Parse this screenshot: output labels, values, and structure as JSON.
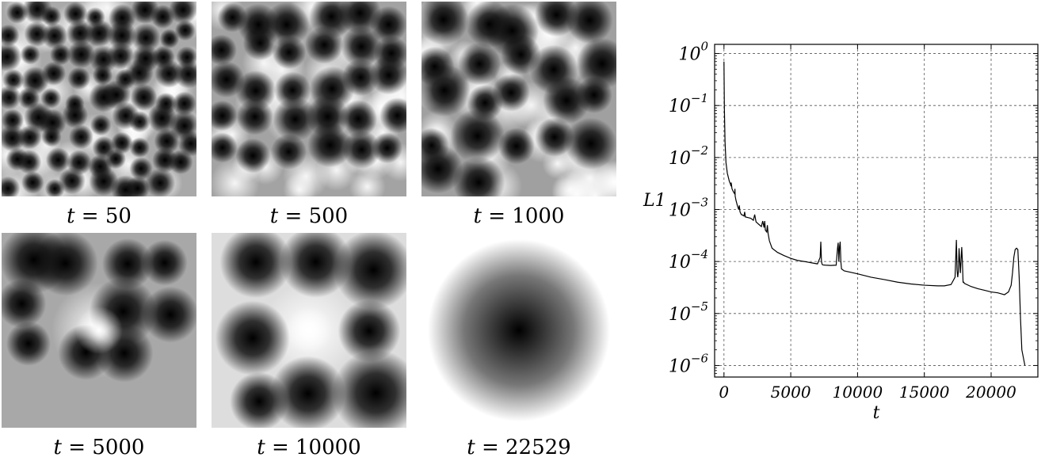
{
  "panels": [
    {
      "t": "50",
      "caption_var": "t",
      "caption_eq": "= 50",
      "background": "#a9a9a9",
      "n_dark_spots": 80,
      "style": "dense"
    },
    {
      "t": "500",
      "caption_var": "t",
      "caption_eq": "= 500",
      "background": "#a3a3a3",
      "n_dark_spots": 30,
      "style": "medium"
    },
    {
      "t": "1000",
      "caption_var": "t",
      "caption_eq": "= 1000",
      "background": "#a0a0a0",
      "n_dark_spots": 22,
      "style": "medium"
    },
    {
      "t": "5000",
      "caption_var": "t",
      "caption_eq": "= 5000",
      "background": "#a8a8a8",
      "n_dark_spots": 10,
      "style": "coarse"
    },
    {
      "t": "10000",
      "caption_var": "t",
      "caption_eq": "= 10000",
      "background": "#dddddd",
      "n_dark_spots": 9,
      "style": "coarse"
    },
    {
      "t": "22529",
      "caption_var": "t",
      "caption_eq": "= 22529",
      "background": "#ffffff",
      "n_dark_spots": 1,
      "style": "single"
    }
  ],
  "chart_data": {
    "type": "line",
    "xlabel": "t",
    "ylabel": "L1",
    "yscale": "log",
    "xlim": [
      -700,
      23500
    ],
    "ylim": [
      6e-07,
      1.5
    ],
    "xticks": [
      0,
      5000,
      10000,
      15000,
      20000
    ],
    "xtick_labels": [
      "0",
      "5000",
      "10000",
      "15000",
      "20000"
    ],
    "yticks": [
      1,
      0.1,
      0.01,
      0.001,
      0.0001,
      1e-05,
      1e-06
    ],
    "ytick_labels": [
      {
        "base": "10",
        "exp": "0"
      },
      {
        "base": "10",
        "exp": "−1"
      },
      {
        "base": "10",
        "exp": "−2"
      },
      {
        "base": "10",
        "exp": "−3"
      },
      {
        "base": "10",
        "exp": "−4"
      },
      {
        "base": "10",
        "exp": "−5"
      },
      {
        "base": "10",
        "exp": "−6"
      }
    ],
    "grid": true,
    "series": [
      {
        "color": "#000000",
        "x": [
          0,
          30,
          80,
          150,
          250,
          400,
          500,
          520,
          540,
          600,
          700,
          800,
          820,
          840,
          900,
          1000,
          1100,
          1150,
          1200,
          1300,
          1400,
          1500,
          1550,
          1600,
          1800,
          2000,
          2200,
          2300,
          2400,
          2600,
          2800,
          2900,
          3000,
          3050,
          3100,
          3200,
          3250,
          3300,
          3400,
          3600,
          4000,
          4500,
          5000,
          5500,
          6000,
          6500,
          7000,
          7200,
          7250,
          7300,
          7350,
          7400,
          7600,
          8000,
          8400,
          8500,
          8550,
          8600,
          8650,
          8700,
          8750,
          8800,
          9000,
          10000,
          11000,
          12000,
          13000,
          14000,
          15000,
          16000,
          16500,
          17000,
          17300,
          17400,
          17450,
          17500,
          17550,
          17600,
          17700,
          17800,
          17850,
          17900,
          17950,
          18000,
          18500,
          19000,
          19500,
          20000,
          20500,
          21000,
          21300,
          21500,
          21600,
          21700,
          21800,
          21900,
          22000,
          22100,
          22200,
          22300,
          22529
        ],
        "y": [
          0.7,
          0.09,
          0.02,
          0.008,
          0.005,
          0.0035,
          0.003,
          0.0028,
          0.0033,
          0.0025,
          0.0022,
          0.002,
          0.0025,
          0.0018,
          0.0015,
          0.0012,
          0.001,
          0.0012,
          0.0009,
          0.0008,
          0.00078,
          0.00075,
          0.0009,
          0.00072,
          0.0007,
          0.00068,
          0.00062,
          0.0008,
          0.00058,
          0.00052,
          0.00047,
          0.0006,
          0.00045,
          0.0006,
          0.0004,
          0.00037,
          0.0005,
          0.00035,
          0.00025,
          0.00018,
          0.00015,
          0.00013,
          0.000115,
          0.000105,
          0.0001,
          9.5e-05,
          9e-05,
          0.00012,
          0.00024,
          0.0001,
          8.8e-05,
          8.6e-05,
          8.5e-05,
          8.4e-05,
          8.5e-05,
          0.00018,
          0.00023,
          0.0001,
          0.00019,
          0.00024,
          0.0001,
          7.2e-05,
          6.6e-05,
          5.8e-05,
          5e-05,
          4.5e-05,
          4e-05,
          3.7e-05,
          3.5e-05,
          3.4e-05,
          3.4e-05,
          3.6e-05,
          5e-05,
          0.00026,
          7e-05,
          5e-05,
          6.5e-05,
          0.00018,
          6e-05,
          0.00019,
          0.0001,
          4e-05,
          4e-05,
          3.8e-05,
          3.3e-05,
          3e-05,
          2.8e-05,
          2.6e-05,
          2.5e-05,
          2.3e-05,
          2.6e-05,
          3.5e-05,
          6e-05,
          0.00012,
          0.00017,
          0.00018,
          0.00017,
          5e-05,
          8e-06,
          2e-06,
          1e-06
        ]
      }
    ]
  }
}
